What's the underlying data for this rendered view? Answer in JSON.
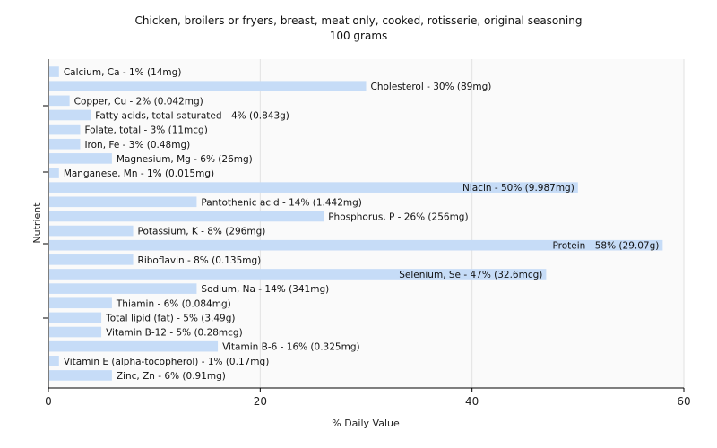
{
  "chart_data": {
    "type": "bar",
    "orientation": "horizontal",
    "title": "Chicken, broilers or fryers, breast, meat only, cooked, rotisserie, original seasoning",
    "subtitle": "100 grams",
    "xlabel": "% Daily Value",
    "ylabel": "Nutrient",
    "xlim": [
      0,
      60
    ],
    "xticks": [
      0,
      20,
      40,
      60
    ],
    "grid": true,
    "bar_color": "#c6dcf7",
    "categories": [
      "Calcium, Ca",
      "Cholesterol",
      "Copper, Cu",
      "Fatty acids, total saturated",
      "Folate, total",
      "Iron, Fe",
      "Magnesium, Mg",
      "Manganese, Mn",
      "Niacin",
      "Pantothenic acid",
      "Phosphorus, P",
      "Potassium, K",
      "Protein",
      "Riboflavin",
      "Selenium, Se",
      "Sodium, Na",
      "Thiamin",
      "Total lipid (fat)",
      "Vitamin B-12",
      "Vitamin B-6",
      "Vitamin E (alpha-tocopherol)",
      "Zinc, Zn"
    ],
    "values": [
      1,
      30,
      2,
      4,
      3,
      3,
      6,
      1,
      50,
      14,
      26,
      8,
      58,
      8,
      47,
      14,
      6,
      5,
      5,
      16,
      1,
      6
    ],
    "labels": [
      "Calcium, Ca - 1% (14mg)",
      "Cholesterol - 30% (89mg)",
      "Copper, Cu - 2% (0.042mg)",
      "Fatty acids, total saturated - 4% (0.843g)",
      "Folate, total - 3% (11mcg)",
      "Iron, Fe - 3% (0.48mg)",
      "Magnesium, Mg - 6% (26mg)",
      "Manganese, Mn - 1% (0.015mg)",
      "Niacin - 50% (9.987mg)",
      "Pantothenic acid - 14% (1.442mg)",
      "Phosphorus, P - 26% (256mg)",
      "Potassium, K - 8% (296mg)",
      "Protein - 58% (29.07g)",
      "Riboflavin - 8% (0.135mg)",
      "Selenium, Se - 47% (32.6mcg)",
      "Sodium, Na - 14% (341mg)",
      "Thiamin - 6% (0.084mg)",
      "Total lipid (fat) - 5% (3.49g)",
      "Vitamin B-12 - 5% (0.28mcg)",
      "Vitamin B-6 - 16% (0.325mg)",
      "Vitamin E (alpha-tocopherol) - 1% (0.17mg)",
      "Zinc, Zn - 6% (0.91mg)"
    ],
    "inside_label_indices": [
      8,
      12,
      14
    ]
  }
}
